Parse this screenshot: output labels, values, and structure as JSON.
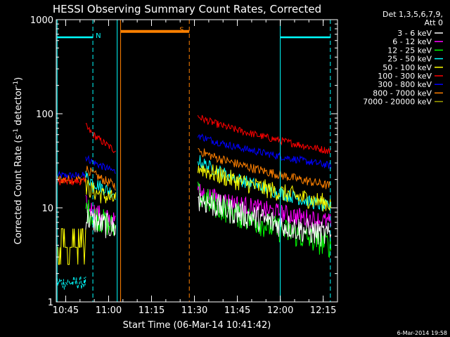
{
  "chart_data": {
    "type": "line",
    "title": "HESSI Observing Summary Count Rates, Corrected",
    "xlabel": "Start Time (06-Mar-14 10:41:42)",
    "ylabel": "Corrected Count Rate (s⁻¹ detector⁻¹)",
    "ylabel_parts": [
      "Corrected Count Rate (s",
      "-1",
      " detector",
      "-1",
      ")"
    ],
    "x_unit": "minutes after 10:41:42",
    "xlim": [
      0,
      98.3
    ],
    "ylim": [
      1,
      1000
    ],
    "yscale": "log",
    "x_ticks": [
      {
        "x": 3.3,
        "label": "10:45"
      },
      {
        "x": 18.3,
        "label": "11:00"
      },
      {
        "x": 33.3,
        "label": "11:15"
      },
      {
        "x": 48.3,
        "label": "11:30"
      },
      {
        "x": 63.3,
        "label": "11:45"
      },
      {
        "x": 78.3,
        "label": "12:00"
      },
      {
        "x": 93.3,
        "label": "12:15"
      }
    ],
    "y_ticks": [
      {
        "y": 1,
        "label": "1"
      },
      {
        "y": 10,
        "label": "10"
      },
      {
        "y": 100,
        "label": "100"
      },
      {
        "y": 1000,
        "label": "1000"
      }
    ],
    "legend": {
      "position": "right",
      "header": [
        "Det 1,3,5,6,7,9,",
        "Att 0"
      ]
    },
    "series": [
      {
        "name": "3 - 6 keV",
        "color": "#ffffff"
      },
      {
        "name": "6 - 12 keV",
        "color": "#ff00ff"
      },
      {
        "name": "12 - 25 keV",
        "color": "#00ff00"
      },
      {
        "name": "25 - 50 keV",
        "color": "#00ffff"
      },
      {
        "name": "50 - 100 keV",
        "color": "#ffff00"
      },
      {
        "name": "100 - 300 keV",
        "color": "#ff0000"
      },
      {
        "name": "300 - 800 keV",
        "color": "#0000ff"
      },
      {
        "name": "800 - 7000 keV",
        "color": "#ff8000"
      },
      {
        "name": "7000 - 20000 keV",
        "color": "#a0a000"
      }
    ],
    "segments": [
      {
        "x0": 0.3,
        "x1": 10.3,
        "levels": {
          "blue": 22,
          "orange": 20,
          "red": 19,
          "yellow": 5,
          "cyan": 1.6
        }
      },
      {
        "x0": 10.3,
        "x1": 21.0,
        "levels": {
          "red": [
            75,
            40
          ],
          "blue": [
            35,
            24
          ],
          "orange": [
            27,
            17
          ],
          "cyan": [
            22,
            14
          ],
          "yellow": [
            17,
            12
          ],
          "magenta": [
            11,
            7
          ],
          "green": [
            10,
            6
          ],
          "white": [
            8,
            6
          ]
        }
      },
      {
        "x0": 49.5,
        "x1": 96.0,
        "levels": {
          "red": [
            95,
            40
          ],
          "blue": [
            60,
            28
          ],
          "orange": [
            42,
            17
          ],
          "cyan": [
            33,
            10
          ],
          "yellow": [
            28,
            11
          ],
          "magenta": [
            15,
            7
          ],
          "green": [
            14,
            4
          ],
          "white": [
            13,
            5
          ]
        }
      }
    ],
    "overlays": [
      {
        "label": "N",
        "color": "#00ffff",
        "x0": 0.3,
        "x1": 12.8,
        "level": 650
      },
      {
        "label": "S",
        "color": "#ff8000",
        "x0": 22.5,
        "x1": 46.5,
        "level": 750
      },
      {
        "label": "",
        "color": "#00ffff",
        "x0": 78.3,
        "x1": 95.8,
        "level": 650
      }
    ],
    "vlines": [
      {
        "x": 0.3,
        "color": "#00ffff",
        "style": "solid"
      },
      {
        "x": 12.8,
        "color": "#00ffff",
        "style": "dashed"
      },
      {
        "x": 21.3,
        "color": "#00ffff",
        "style": "solid"
      },
      {
        "x": 22.5,
        "color": "#ff8000",
        "style": "solid"
      },
      {
        "x": 46.5,
        "color": "#ff8000",
        "style": "dashed"
      },
      {
        "x": 78.3,
        "color": "#00ffff",
        "style": "solid"
      },
      {
        "x": 95.8,
        "color": "#00ffff",
        "style": "dashed"
      }
    ],
    "footer_date": "6-Mar-2014 19:58"
  }
}
